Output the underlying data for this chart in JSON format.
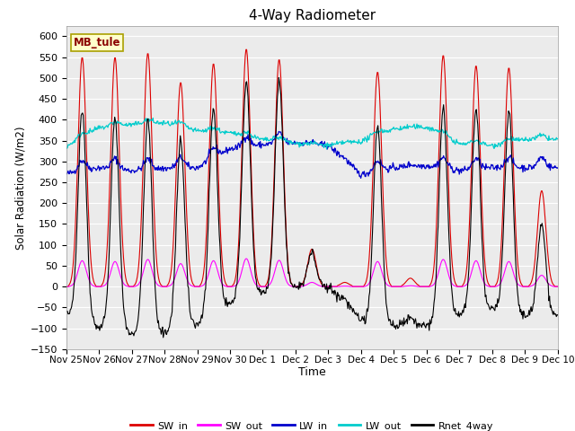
{
  "title": "4-Way Radiometer",
  "xlabel": "Time",
  "ylabel": "Solar Radiation (W/m2)",
  "ylim": [
    -150,
    625
  ],
  "yticks": [
    -150,
    -100,
    -50,
    0,
    50,
    100,
    150,
    200,
    250,
    300,
    350,
    400,
    450,
    500,
    550,
    600
  ],
  "station_label": "MB_tule",
  "x_tick_labels": [
    "Nov 25",
    "Nov 26",
    "Nov 27",
    "Nov 28",
    "Nov 29",
    "Nov 30",
    "Dec 1",
    "Dec 2",
    "Dec 3",
    "Dec 4",
    "Dec 5",
    "Dec 6",
    "Dec 7",
    "Dec 8",
    "Dec 9",
    "Dec 10"
  ],
  "colors": {
    "SW_in": "#dd0000",
    "SW_out": "#ff00ff",
    "LW_in": "#0000cc",
    "LW_out": "#00cccc",
    "Rnet_4way": "#000000"
  },
  "plot_bg_color": "#ebebeb",
  "sw_peaks": [
    550,
    550,
    560,
    490,
    535,
    570,
    545,
    90,
    10,
    515,
    20,
    555,
    530,
    525,
    230
  ],
  "sw_out_peaks": [
    62,
    60,
    65,
    55,
    62,
    67,
    63,
    10,
    1,
    60,
    2,
    65,
    62,
    60,
    27
  ],
  "lw_in_base": [
    270,
    285,
    278,
    283,
    285,
    330,
    340,
    345,
    338,
    268,
    285,
    290,
    278,
    285,
    285
  ],
  "lw_out_base": [
    335,
    380,
    388,
    392,
    373,
    368,
    352,
    343,
    338,
    348,
    378,
    382,
    342,
    338,
    352
  ],
  "n_days": 15,
  "pts_per_day": 48
}
